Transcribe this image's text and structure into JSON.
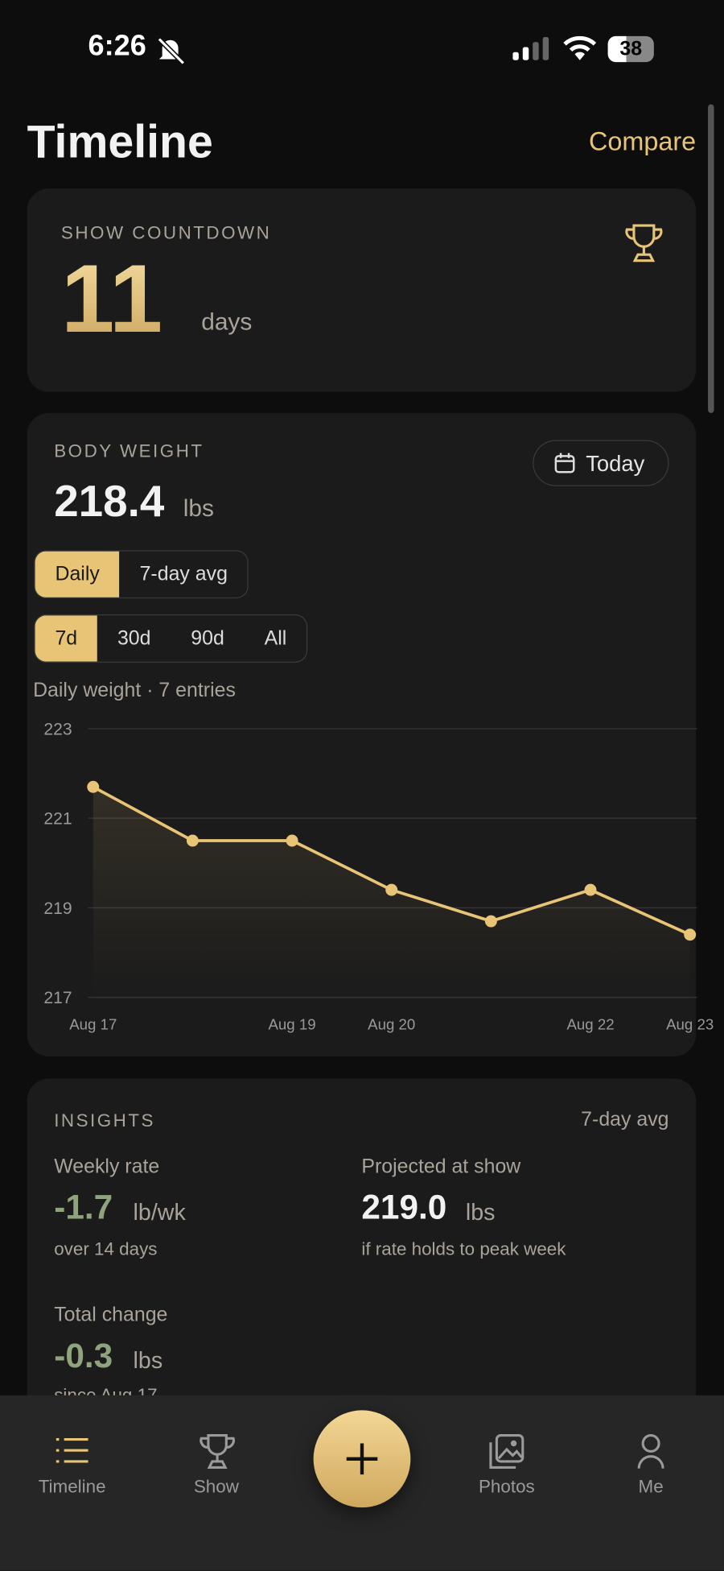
{
  "status_bar": {
    "time": "6:26",
    "battery": "38"
  },
  "header": {
    "title": "Timeline",
    "action": "Compare"
  },
  "countdown": {
    "label": "SHOW COUNTDOWN",
    "value": "11",
    "unit": "days"
  },
  "body_weight": {
    "label": "BODY WEIGHT",
    "value": "218.4",
    "unit": "lbs",
    "date_button": "Today",
    "modes": [
      "Daily",
      "7-day avg"
    ],
    "ranges": [
      "7d",
      "30d",
      "90d",
      "All"
    ]
  },
  "chart_data": {
    "type": "line",
    "title": "Daily weight · 7 entries",
    "categories": [
      "Aug 17",
      null,
      "Aug 19",
      "Aug 20",
      null,
      "Aug 22",
      "Aug 23"
    ],
    "series": [
      {
        "name": "Weight",
        "color": "#e8c477",
        "values": [
          221.7,
          220.5,
          220.5,
          219.4,
          218.7,
          219.4,
          218.4
        ]
      }
    ],
    "ylim": [
      217,
      223
    ],
    "yticks": [
      217,
      219,
      221,
      223
    ],
    "grid": true
  },
  "insights": {
    "label": "INSIGHTS",
    "basis": "7-day avg",
    "items": [
      {
        "label": "Weekly rate",
        "value": "-1.7",
        "unit": "lb/wk",
        "note": "over 14 days"
      },
      {
        "label": "Projected at show",
        "value": "219.0",
        "unit": "lbs",
        "note": "if rate holds to peak week"
      },
      {
        "label": "Total change",
        "value": "-0.3",
        "unit": "lbs",
        "note": "since Aug 17"
      }
    ]
  },
  "tab_bar": {
    "tabs": [
      "Timeline",
      "Show",
      "Photos",
      "Me"
    ]
  }
}
